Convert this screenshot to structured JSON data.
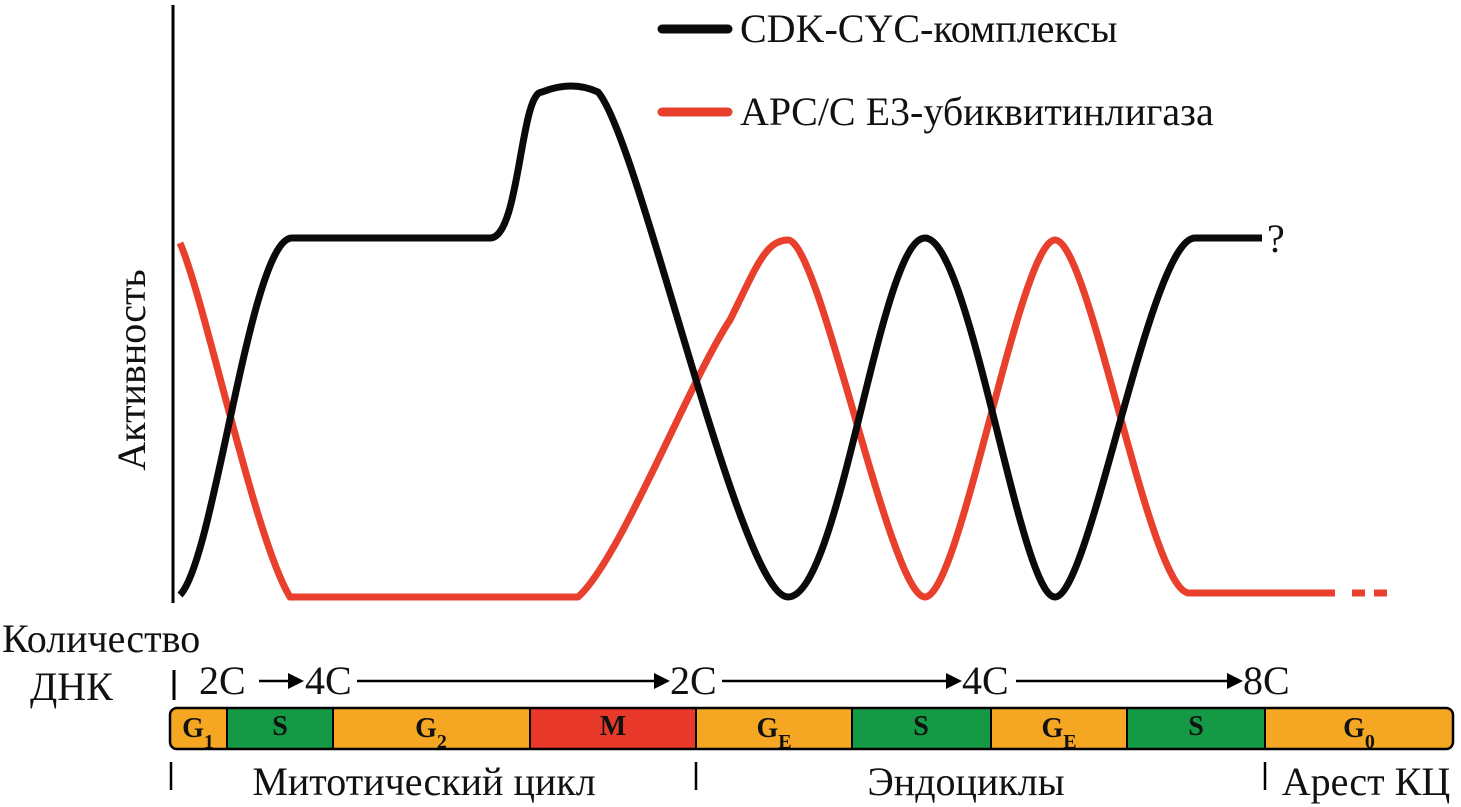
{
  "colors": {
    "cdk": "#0a0a0a",
    "apc": "#e8402c",
    "phase_orange": "#f5a623",
    "phase_green": "#149a45",
    "phase_red": "#e8392a",
    "axis": "#000000"
  },
  "legend": [
    {
      "label": "CDK-CYC-комплексы",
      "color": "#0a0a0a"
    },
    {
      "label": "APC/C E3-убиквитинлигаза",
      "color": "#e8402c"
    }
  ],
  "y_axis_label": "Активность",
  "question_mark": "?",
  "dna": {
    "title_line1": "Количество",
    "title_line2": "ДНК",
    "values": [
      "2C",
      "4C",
      "2C",
      "4C",
      "8C"
    ]
  },
  "phases": [
    {
      "main": "G",
      "sub": "1",
      "color": "orange"
    },
    {
      "main": "S",
      "sub": "",
      "color": "green"
    },
    {
      "main": "G",
      "sub": "2",
      "color": "orange"
    },
    {
      "main": "M",
      "sub": "",
      "color": "red"
    },
    {
      "main": "G",
      "sub": "E",
      "color": "orange"
    },
    {
      "main": "S",
      "sub": "",
      "color": "green"
    },
    {
      "main": "G",
      "sub": "E",
      "color": "orange"
    },
    {
      "main": "S",
      "sub": "",
      "color": "green"
    },
    {
      "main": "G",
      "sub": "0",
      "color": "orange"
    }
  ],
  "stages": [
    "Митотический цикл",
    "Эндоциклы",
    "Арест КЦ"
  ]
}
